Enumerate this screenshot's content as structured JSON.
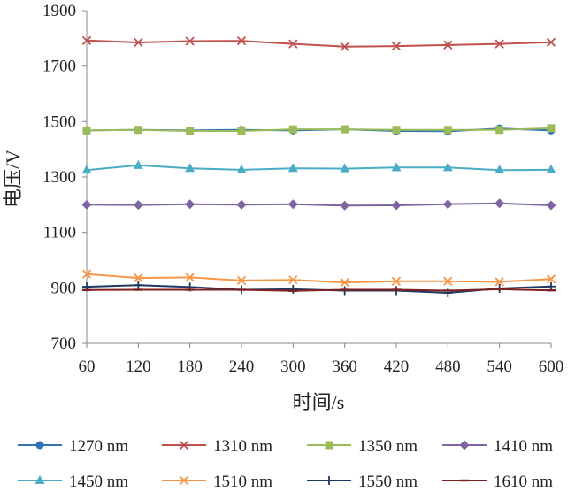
{
  "chart_data": {
    "type": "line",
    "title": "",
    "xlabel": "时间/s",
    "ylabel": "电压/V",
    "x": [
      60,
      120,
      180,
      240,
      300,
      360,
      420,
      480,
      540,
      600
    ],
    "xlim": [
      60,
      600
    ],
    "ylim": [
      700,
      1900
    ],
    "yticks": [
      700,
      900,
      1100,
      1300,
      1500,
      1700,
      1900
    ],
    "grid": false,
    "legend_position": "bottom",
    "series": [
      {
        "name": "1270 nm",
        "color": "#2e75b6",
        "marker": "circle",
        "values": [
          1468,
          1470,
          1468,
          1470,
          1468,
          1472,
          1466,
          1465,
          1475,
          1468
        ]
      },
      {
        "name": "1310 nm",
        "color": "#c0504d",
        "marker": "x",
        "values": [
          1792,
          1785,
          1790,
          1791,
          1780,
          1770,
          1772,
          1776,
          1780,
          1786
        ]
      },
      {
        "name": "1350 nm",
        "color": "#9bbb59",
        "marker": "square",
        "values": [
          1468,
          1470,
          1466,
          1466,
          1472,
          1472,
          1470,
          1470,
          1470,
          1476
        ]
      },
      {
        "name": "1410 nm",
        "color": "#8064a2",
        "marker": "diamond",
        "values": [
          1200,
          1199,
          1202,
          1200,
          1202,
          1197,
          1198,
          1202,
          1205,
          1198
        ]
      },
      {
        "name": "1450 nm",
        "color": "#4bacc6",
        "marker": "triangle",
        "values": [
          1325,
          1342,
          1331,
          1326,
          1331,
          1330,
          1334,
          1334,
          1325,
          1326
        ]
      },
      {
        "name": "1510 nm",
        "color": "#f79646",
        "marker": "x",
        "values": [
          950,
          936,
          938,
          927,
          929,
          920,
          924,
          924,
          922,
          932
        ]
      },
      {
        "name": "1550 nm",
        "color": "#1f3864",
        "marker": "plus",
        "values": [
          904,
          910,
          903,
          893,
          895,
          890,
          890,
          882,
          898,
          905
        ]
      },
      {
        "name": "1610 nm",
        "color": "#7f1f1f",
        "marker": "dash",
        "values": [
          892,
          893,
          893,
          893,
          889,
          893,
          893,
          890,
          895,
          891
        ]
      }
    ]
  }
}
